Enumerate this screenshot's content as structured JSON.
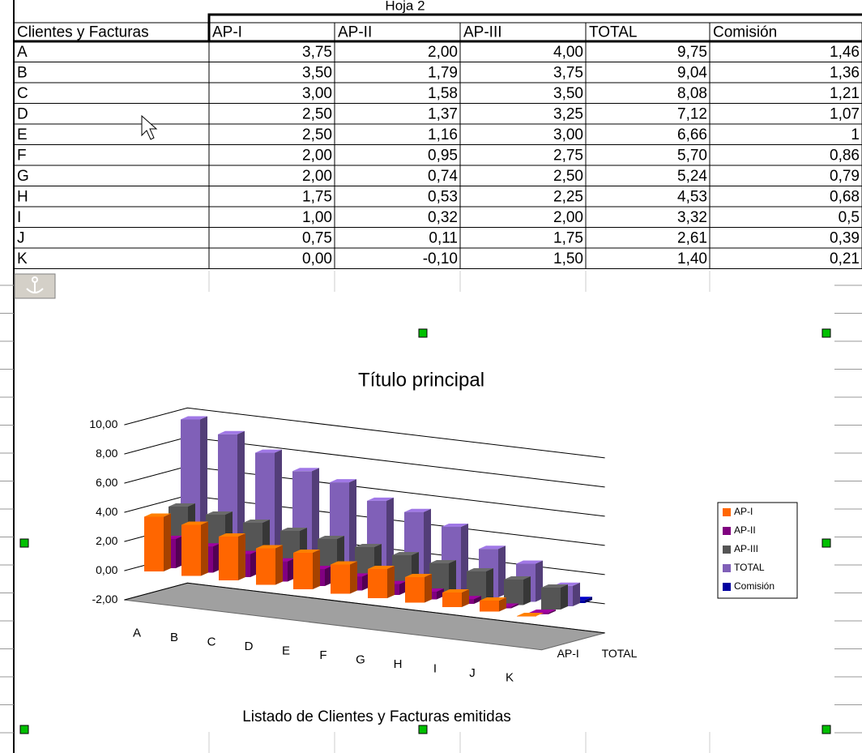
{
  "sheet": {
    "name": "Hoja 2"
  },
  "table": {
    "header": [
      "Clientes y Facturas",
      "AP-I",
      "AP-II",
      "AP-III",
      "TOTAL",
      "Comisión"
    ],
    "rows": [
      [
        "A",
        "3,75",
        "2,00",
        "4,00",
        "9,75",
        "1,46"
      ],
      [
        "B",
        "3,50",
        "1,79",
        "3,75",
        "9,04",
        "1,36"
      ],
      [
        "C",
        "3,00",
        "1,58",
        "3,50",
        "8,08",
        "1,21"
      ],
      [
        "D",
        "2,50",
        "1,37",
        "3,25",
        "7,12",
        "1,07"
      ],
      [
        "E",
        "2,50",
        "1,16",
        "3,00",
        "6,66",
        "1"
      ],
      [
        "F",
        "2,00",
        "0,95",
        "2,75",
        "5,70",
        "0,86"
      ],
      [
        "G",
        "2,00",
        "0,74",
        "2,50",
        "5,24",
        "0,79"
      ],
      [
        "H",
        "1,75",
        "0,53",
        "2,25",
        "4,53",
        "0,68"
      ],
      [
        "I",
        "1,00",
        "0,32",
        "2,00",
        "3,32",
        "0,5"
      ],
      [
        "J",
        "0,75",
        "0,11",
        "1,75",
        "2,61",
        "0,39"
      ],
      [
        "K",
        "0,00",
        "-0,10",
        "1,50",
        "1,40",
        "0,21"
      ]
    ]
  },
  "chart_data": {
    "type": "bar3d",
    "title": "Título principal",
    "x_label": "Listado de Clientes y Facturas emitidas",
    "categories": [
      "A",
      "B",
      "C",
      "D",
      "E",
      "F",
      "G",
      "H",
      "I",
      "J",
      "K"
    ],
    "series": [
      {
        "name": "AP-I",
        "color": "#ff6600",
        "values": [
          3.75,
          3.5,
          3,
          2.5,
          2.5,
          2,
          2,
          1.75,
          1,
          0.75,
          0
        ]
      },
      {
        "name": "AP-II",
        "color": "#800080",
        "values": [
          2,
          1.79,
          1.58,
          1.37,
          1.16,
          0.95,
          0.74,
          0.53,
          0.32,
          0.11,
          -0.1
        ]
      },
      {
        "name": "AP-III",
        "color": "#555555",
        "values": [
          4,
          3.75,
          3.5,
          3.25,
          3,
          2.75,
          2.5,
          2.25,
          2,
          1.75,
          1.5
        ]
      },
      {
        "name": "TOTAL",
        "color": "#8060b8",
        "values": [
          9.75,
          9.04,
          8.08,
          7.12,
          6.66,
          5.7,
          5.24,
          4.53,
          3.32,
          2.61,
          1.4
        ]
      },
      {
        "name": "Comisión",
        "color": "#0000a0",
        "values": [
          1.46,
          1.36,
          1.21,
          1.07,
          1,
          0.86,
          0.79,
          0.68,
          0.5,
          0.39,
          0.21
        ]
      }
    ],
    "ylim": [
      -2,
      10
    ],
    "yticks": [
      {
        "value": -2,
        "label": "-2,00"
      },
      {
        "value": 0,
        "label": "0,00"
      },
      {
        "value": 2,
        "label": "2,00"
      },
      {
        "value": 4,
        "label": "4,00"
      },
      {
        "value": 6,
        "label": "6,00"
      },
      {
        "value": 8,
        "label": "8,00"
      },
      {
        "value": 10,
        "label": "10,00"
      }
    ],
    "grid": true,
    "legend": "right"
  }
}
